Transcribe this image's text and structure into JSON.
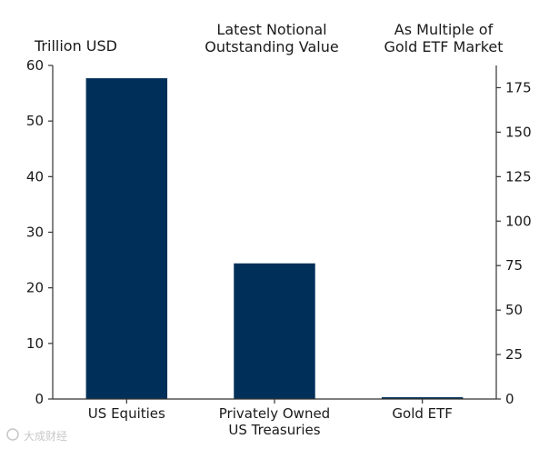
{
  "chart_data": {
    "type": "bar",
    "title": "Latest Notional Outstanding Value",
    "categories": [
      "US Equities",
      "Privately Owned US Treasuries",
      "Gold ETF"
    ],
    "category_lines": [
      [
        "US Equities"
      ],
      [
        "Privately Owned",
        "US Treasuries"
      ],
      [
        "Gold ETF"
      ]
    ],
    "values": [
      57.7,
      24.4,
      0.32
    ],
    "ylabel_left": "Trillion USD",
    "ylabel_right": [
      "As Multiple of",
      "Gold ETF Market"
    ],
    "title_lines": [
      "Latest Notional",
      "Outstanding Value"
    ],
    "ylim_left": [
      0,
      60
    ],
    "left_ticks": [
      0,
      10,
      20,
      30,
      40,
      50,
      60
    ],
    "ylim_right": [
      0,
      187.5
    ],
    "right_ticks": [
      0,
      25,
      50,
      75,
      100,
      125,
      150,
      175
    ],
    "bar_color": "#00305a",
    "grid": false,
    "legend": "none"
  },
  "watermark": "大成财经"
}
